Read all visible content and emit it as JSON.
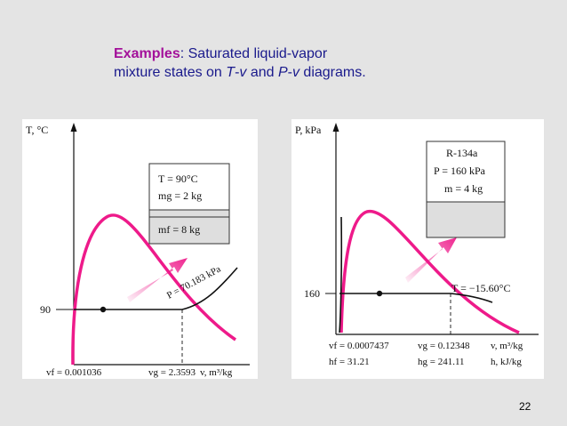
{
  "slide": {
    "title_keyword": "Examples",
    "title_colon": ":",
    "title_line1_rest": " Saturated liquid-vapor",
    "title_line2_pre": "mixture states on ",
    "title_T": "T",
    "title_mid1": "-",
    "title_v1": "v",
    "title_mid2": " and ",
    "title_P": "P",
    "title_mid3": "-",
    "title_v2": "v",
    "title_line2_post": " diagrams.",
    "page_number": "22",
    "colors": {
      "keyword": "#a3109a",
      "title_text": "#1a1a8c",
      "dome": "#ee1a8a",
      "background": "#e4e4e4"
    }
  },
  "tv_diagram": {
    "y_axis_label": "T, °C",
    "x_axis_label": "v, m³/kg",
    "isobar_label": "P = 70.183 kPa",
    "tick_y_label": "90",
    "vf_label": "vf = 0.001036",
    "vg_label": "vg = 2.3593",
    "box": {
      "line1": "T = 90°C",
      "line2": "mg = 2 kg",
      "line3": "mf = 8 kg"
    }
  },
  "pv_diagram": {
    "y_axis_label": "P, kPa",
    "x_axis_label": "v, m³/kg",
    "x_axis_label2": "h, kJ/kg",
    "isotherm_label": "T = −15.60°C",
    "tick_y_label": "160",
    "vf_label": "vf = 0.0007437",
    "vg_label": "vg = 0.12348",
    "hf_label": "hf = 31.21",
    "hg_label": "hg = 241.11",
    "box": {
      "line1": "R-134a",
      "line2": "P = 160 kPa",
      "line3": "m = 4 kg"
    }
  }
}
